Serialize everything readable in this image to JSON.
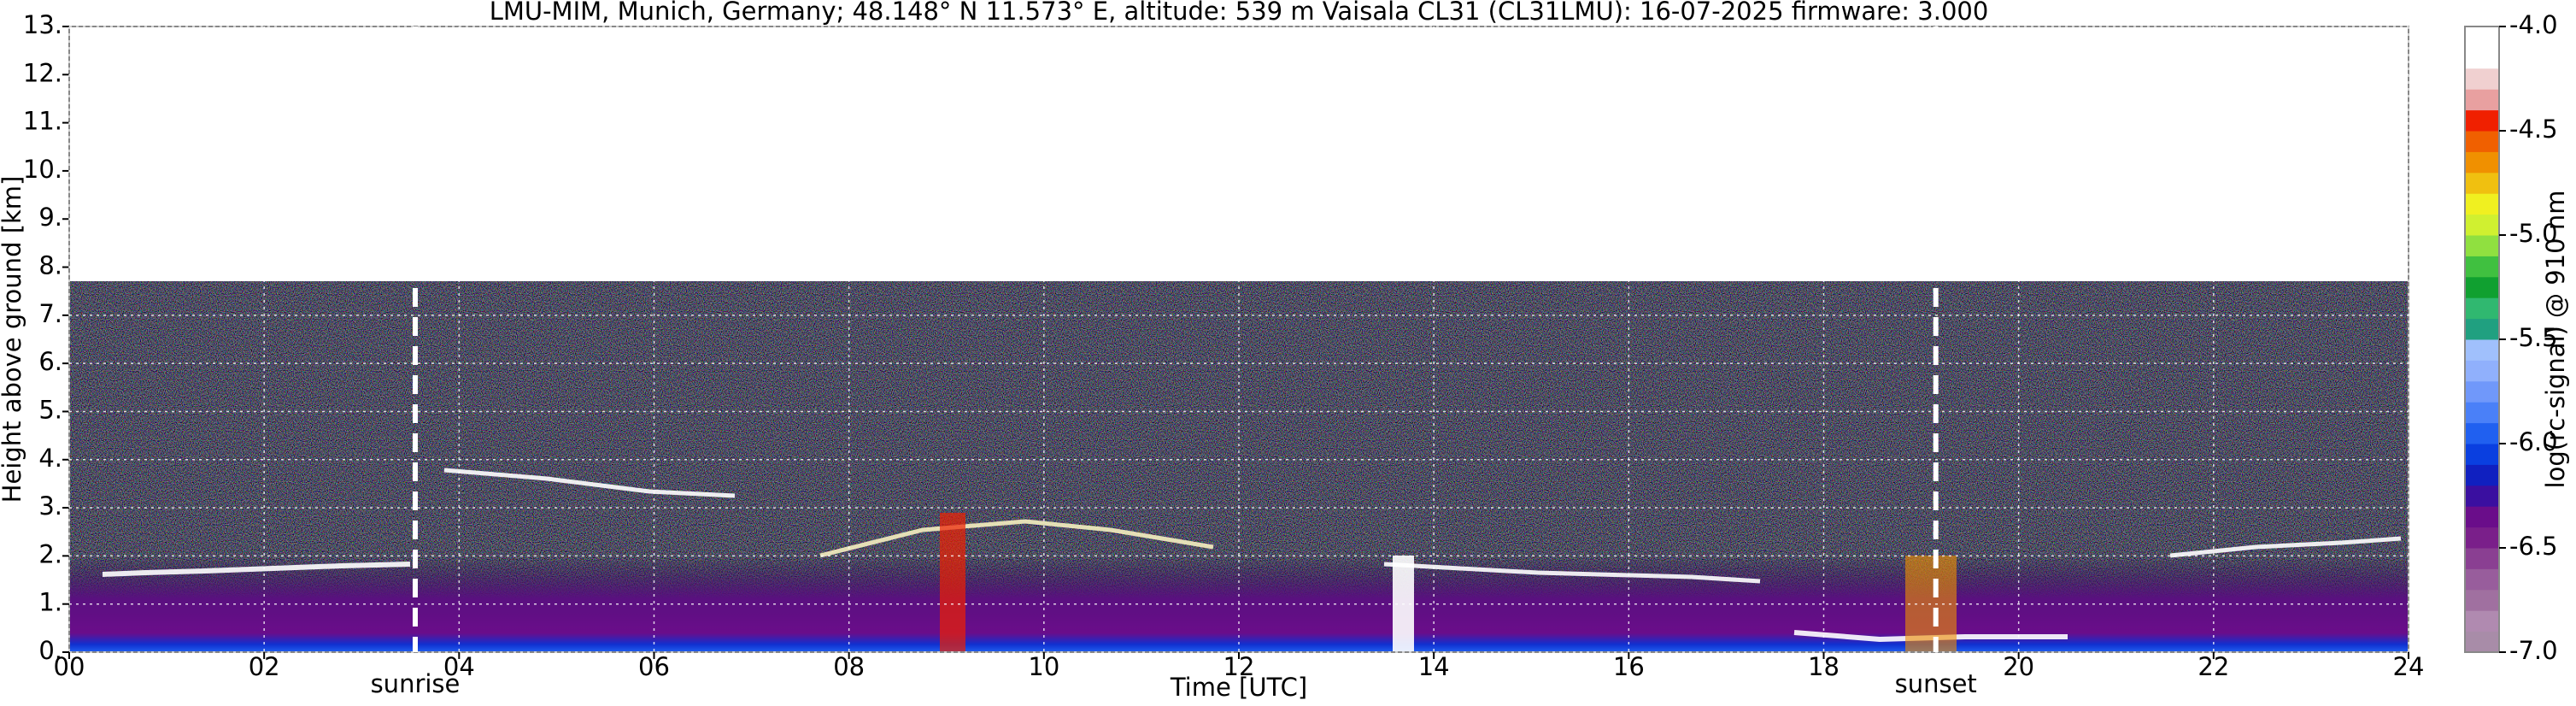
{
  "chart_data": {
    "type": "heatmap",
    "title": "LMU-MIM, Munich, Germany; 48.148° N 11.573° E, altitude: 539 m    Vaisala CL31 (CL31LMU): 16-07-2025    firmware: 3.000",
    "xlabel": "Time [UTC]",
    "ylabel": "Height above ground [km]",
    "xlim": [
      0,
      24
    ],
    "ylim": [
      0,
      13
    ],
    "xticks": [
      {
        "value": 0,
        "label": "00"
      },
      {
        "value": 2,
        "label": "02"
      },
      {
        "value": 4,
        "label": "04"
      },
      {
        "value": 6,
        "label": "06"
      },
      {
        "value": 8,
        "label": "08"
      },
      10,
      12,
      14,
      16,
      18,
      20,
      22,
      24
    ],
    "yticks": [
      {
        "value": 0,
        "label": "0."
      },
      {
        "value": 1,
        "label": "1."
      },
      {
        "value": 2,
        "label": "2."
      },
      {
        "value": 3,
        "label": "3."
      },
      {
        "value": 4,
        "label": "4."
      },
      {
        "value": 5,
        "label": "5."
      },
      {
        "value": 6,
        "label": "6."
      },
      {
        "value": 7,
        "label": "7."
      },
      {
        "value": 8,
        "label": "8."
      },
      {
        "value": 9,
        "label": "9."
      },
      {
        "value": 10,
        "label": "10."
      },
      {
        "value": 11,
        "label": "11."
      },
      {
        "value": 12,
        "label": "12."
      },
      {
        "value": 13,
        "label": "13."
      }
    ],
    "grid": true,
    "annotations": [
      {
        "text": "sunrise",
        "x": 3.55
      },
      {
        "text": "sunset",
        "x": 19.15
      }
    ],
    "colorbar": {
      "label": "log(rc-signal) @ 910 nm",
      "lim": [
        -7,
        -4
      ],
      "ticks": [
        {
          "value": -7,
          "label": "-7.0"
        },
        {
          "value": -6.5,
          "label": "-6.5"
        },
        {
          "value": -6,
          "label": "-6.0"
        },
        {
          "value": -5.5,
          "label": "-5.5"
        },
        {
          "value": -5,
          "label": "-5.0"
        },
        {
          "value": -4.5,
          "label": "-4.5"
        },
        {
          "value": -4,
          "label": "-4.0"
        }
      ],
      "colors": [
        "#a88ca8",
        "#b08ab0",
        "#a070a0",
        "#985d9c",
        "#8a3f92",
        "#7a1f8a",
        "#6a0d8a",
        "#3a0fa0",
        "#1020c0",
        "#0a3fe0",
        "#2060f0",
        "#4a80f8",
        "#7098fa",
        "#90b0fc",
        "#a0c0fc",
        "#20a080",
        "#30b870",
        "#10a030",
        "#40c040",
        "#90e040",
        "#d0f030",
        "#f0f020",
        "#f0c010",
        "#f09000",
        "#f06000",
        "#f02000",
        "#e8a0a0",
        "#f0d0d0",
        "#ffffff",
        "#ffffff"
      ]
    }
  }
}
